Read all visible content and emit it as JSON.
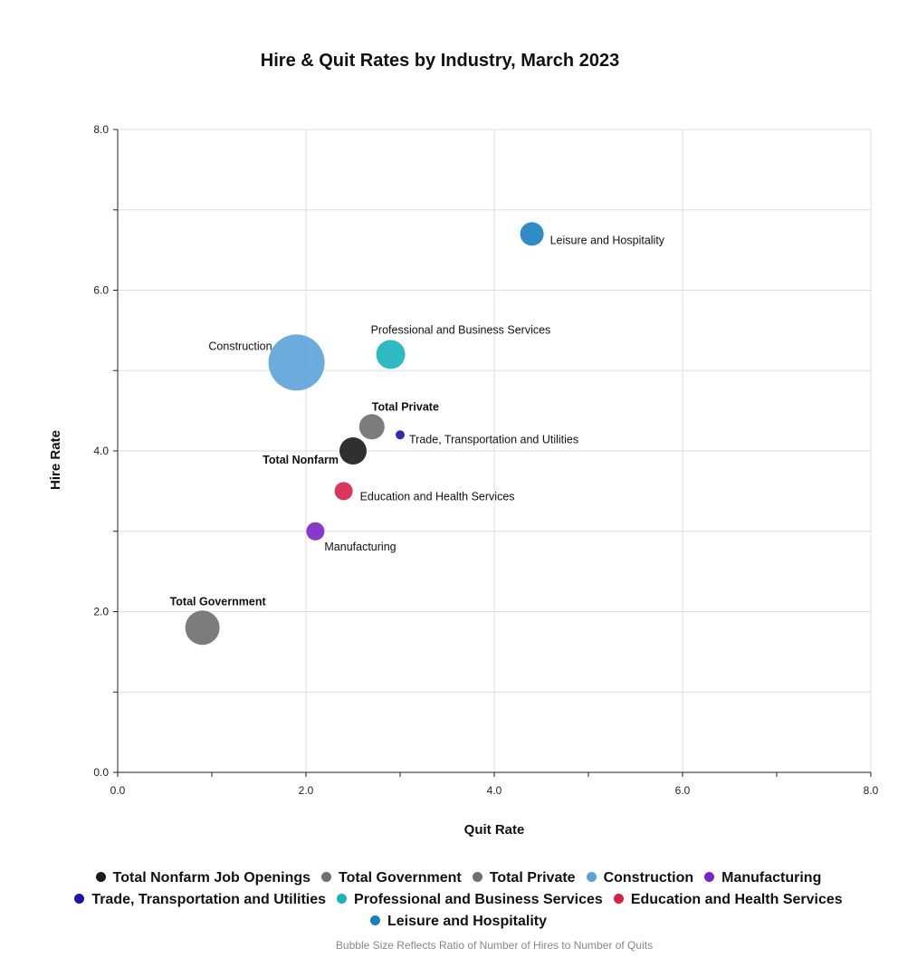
{
  "chart_data": {
    "type": "scatter",
    "title": "Hire & Quit Rates by Industry, March 2023",
    "xlabel": "Quit Rate",
    "ylabel": "Hire Rate",
    "xlim": [
      0,
      8
    ],
    "ylim": [
      0,
      8
    ],
    "xticks": [
      "0.0",
      "2.0",
      "4.0",
      "6.0",
      "8.0"
    ],
    "yticks": [
      "0.0",
      "2.0",
      "4.0",
      "6.0",
      "8.0"
    ],
    "grid": true,
    "legend_position": "bottom",
    "note": "Bubble Size Reflects Ratio of Number of Hires to Number of Quits",
    "series": [
      {
        "name": "Total Nonfarm Job Openings",
        "label": "Total Nonfarm",
        "x": 2.5,
        "y": 4.0,
        "color": "#1a1a1a"
      },
      {
        "name": "Total Government",
        "label": "Total Government",
        "x": 0.9,
        "y": 1.8,
        "color": "#6e6e6e"
      },
      {
        "name": "Total Private",
        "label": "Total Private",
        "x": 2.7,
        "y": 4.3,
        "color": "#6e6e6e"
      },
      {
        "name": "Construction",
        "label": "Construction",
        "x": 1.9,
        "y": 5.1,
        "color": "#5ba3d9"
      },
      {
        "name": "Manufacturing",
        "label": "Manufacturing",
        "x": 2.1,
        "y": 3.0,
        "color": "#7b22c4"
      },
      {
        "name": "Trade, Transportation and Utilities",
        "label": "Trade, Transportation and Utilities",
        "x": 3.0,
        "y": 4.2,
        "color": "#1a14a8"
      },
      {
        "name": "Professional and Business Services",
        "label": "Professional and Business Services",
        "x": 2.9,
        "y": 5.2,
        "color": "#16b3bd"
      },
      {
        "name": "Education and Health Services",
        "label": "Education and Health Services",
        "x": 2.4,
        "y": 3.5,
        "color": "#d62048"
      },
      {
        "name": "Leisure and Hospitality",
        "label": "Leisure and Hospitality",
        "x": 4.4,
        "y": 6.7,
        "color": "#1a7fc1"
      }
    ]
  }
}
